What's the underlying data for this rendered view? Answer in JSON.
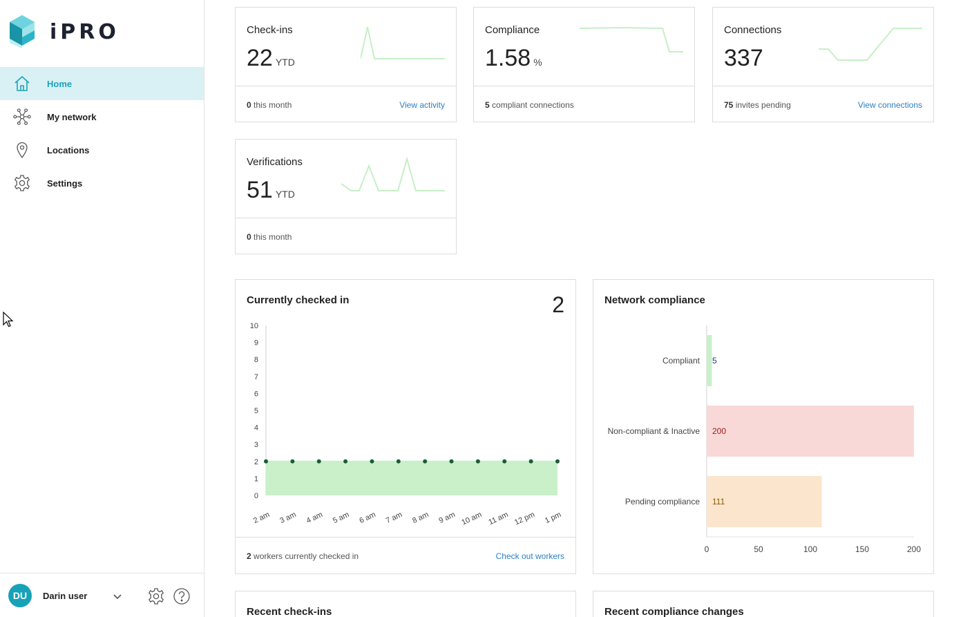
{
  "app": {
    "brand": "iPRO"
  },
  "sidebar": {
    "items": [
      {
        "label": "Home",
        "icon": "home-icon",
        "active": true
      },
      {
        "label": "My network",
        "icon": "network-icon",
        "active": false
      },
      {
        "label": "Locations",
        "icon": "location-pin-icon",
        "active": false
      },
      {
        "label": "Settings",
        "icon": "gear-icon",
        "active": false
      }
    ]
  },
  "user": {
    "initials": "DU",
    "name": "Darin user"
  },
  "stats": {
    "checkins": {
      "title": "Check-ins",
      "value": "22",
      "unit": "YTD",
      "foot_count": "0",
      "foot_text": " this month",
      "link": "View activity"
    },
    "compliance": {
      "title": "Compliance",
      "value": "1.58",
      "unit": "%",
      "foot_count": "5",
      "foot_text": " compliant connections"
    },
    "connections": {
      "title": "Connections",
      "value": "337",
      "foot_count": "75",
      "foot_text": " invites pending",
      "link": "View connections"
    },
    "verifications": {
      "title": "Verifications",
      "value": "51",
      "unit": "YTD",
      "foot_count": "0",
      "foot_text": " this month"
    }
  },
  "checked_in": {
    "title": "Currently checked in",
    "count": "2",
    "foot_count": "2",
    "foot_text": " workers currently checked in",
    "link": "Check out workers"
  },
  "network_compliance": {
    "title": "Network compliance"
  },
  "recent": {
    "checkins_title": "Recent check-ins",
    "compliance_title": "Recent compliance changes"
  },
  "colors": {
    "accent": "#1aa3b8",
    "link": "#2c7fc4",
    "spark": "#c6efc6",
    "area": "#c9f0c9",
    "dot": "#1a5c3a"
  },
  "chart_data": [
    {
      "type": "area",
      "title": "Currently checked in",
      "categories": [
        "2 am",
        "3 am",
        "4 am",
        "5 am",
        "6 am",
        "7 am",
        "8 am",
        "9 am",
        "10 am",
        "11 am",
        "12 pm",
        "1 pm"
      ],
      "values": [
        2,
        2,
        2,
        2,
        2,
        2,
        2,
        2,
        2,
        2,
        2,
        2
      ],
      "ylim": [
        0,
        10
      ],
      "yticks": [
        "0",
        "1",
        "2",
        "3",
        "4",
        "5",
        "6",
        "7",
        "8",
        "9",
        "10"
      ]
    },
    {
      "type": "bar",
      "orientation": "horizontal",
      "title": "Network compliance",
      "categories": [
        "Compliant",
        "Non-compliant & Inactive",
        "Pending compliance"
      ],
      "values": [
        5,
        200,
        111
      ],
      "xlim": [
        0,
        200
      ],
      "xticks": [
        "0",
        "50",
        "100",
        "150",
        "200"
      ],
      "bar_colors": [
        "#c9f0c9",
        "#f9d8d8",
        "#fbe5cc"
      ],
      "label_colors": [
        "#1d3b8a",
        "#9a1a1a",
        "#8a5a00"
      ]
    }
  ]
}
